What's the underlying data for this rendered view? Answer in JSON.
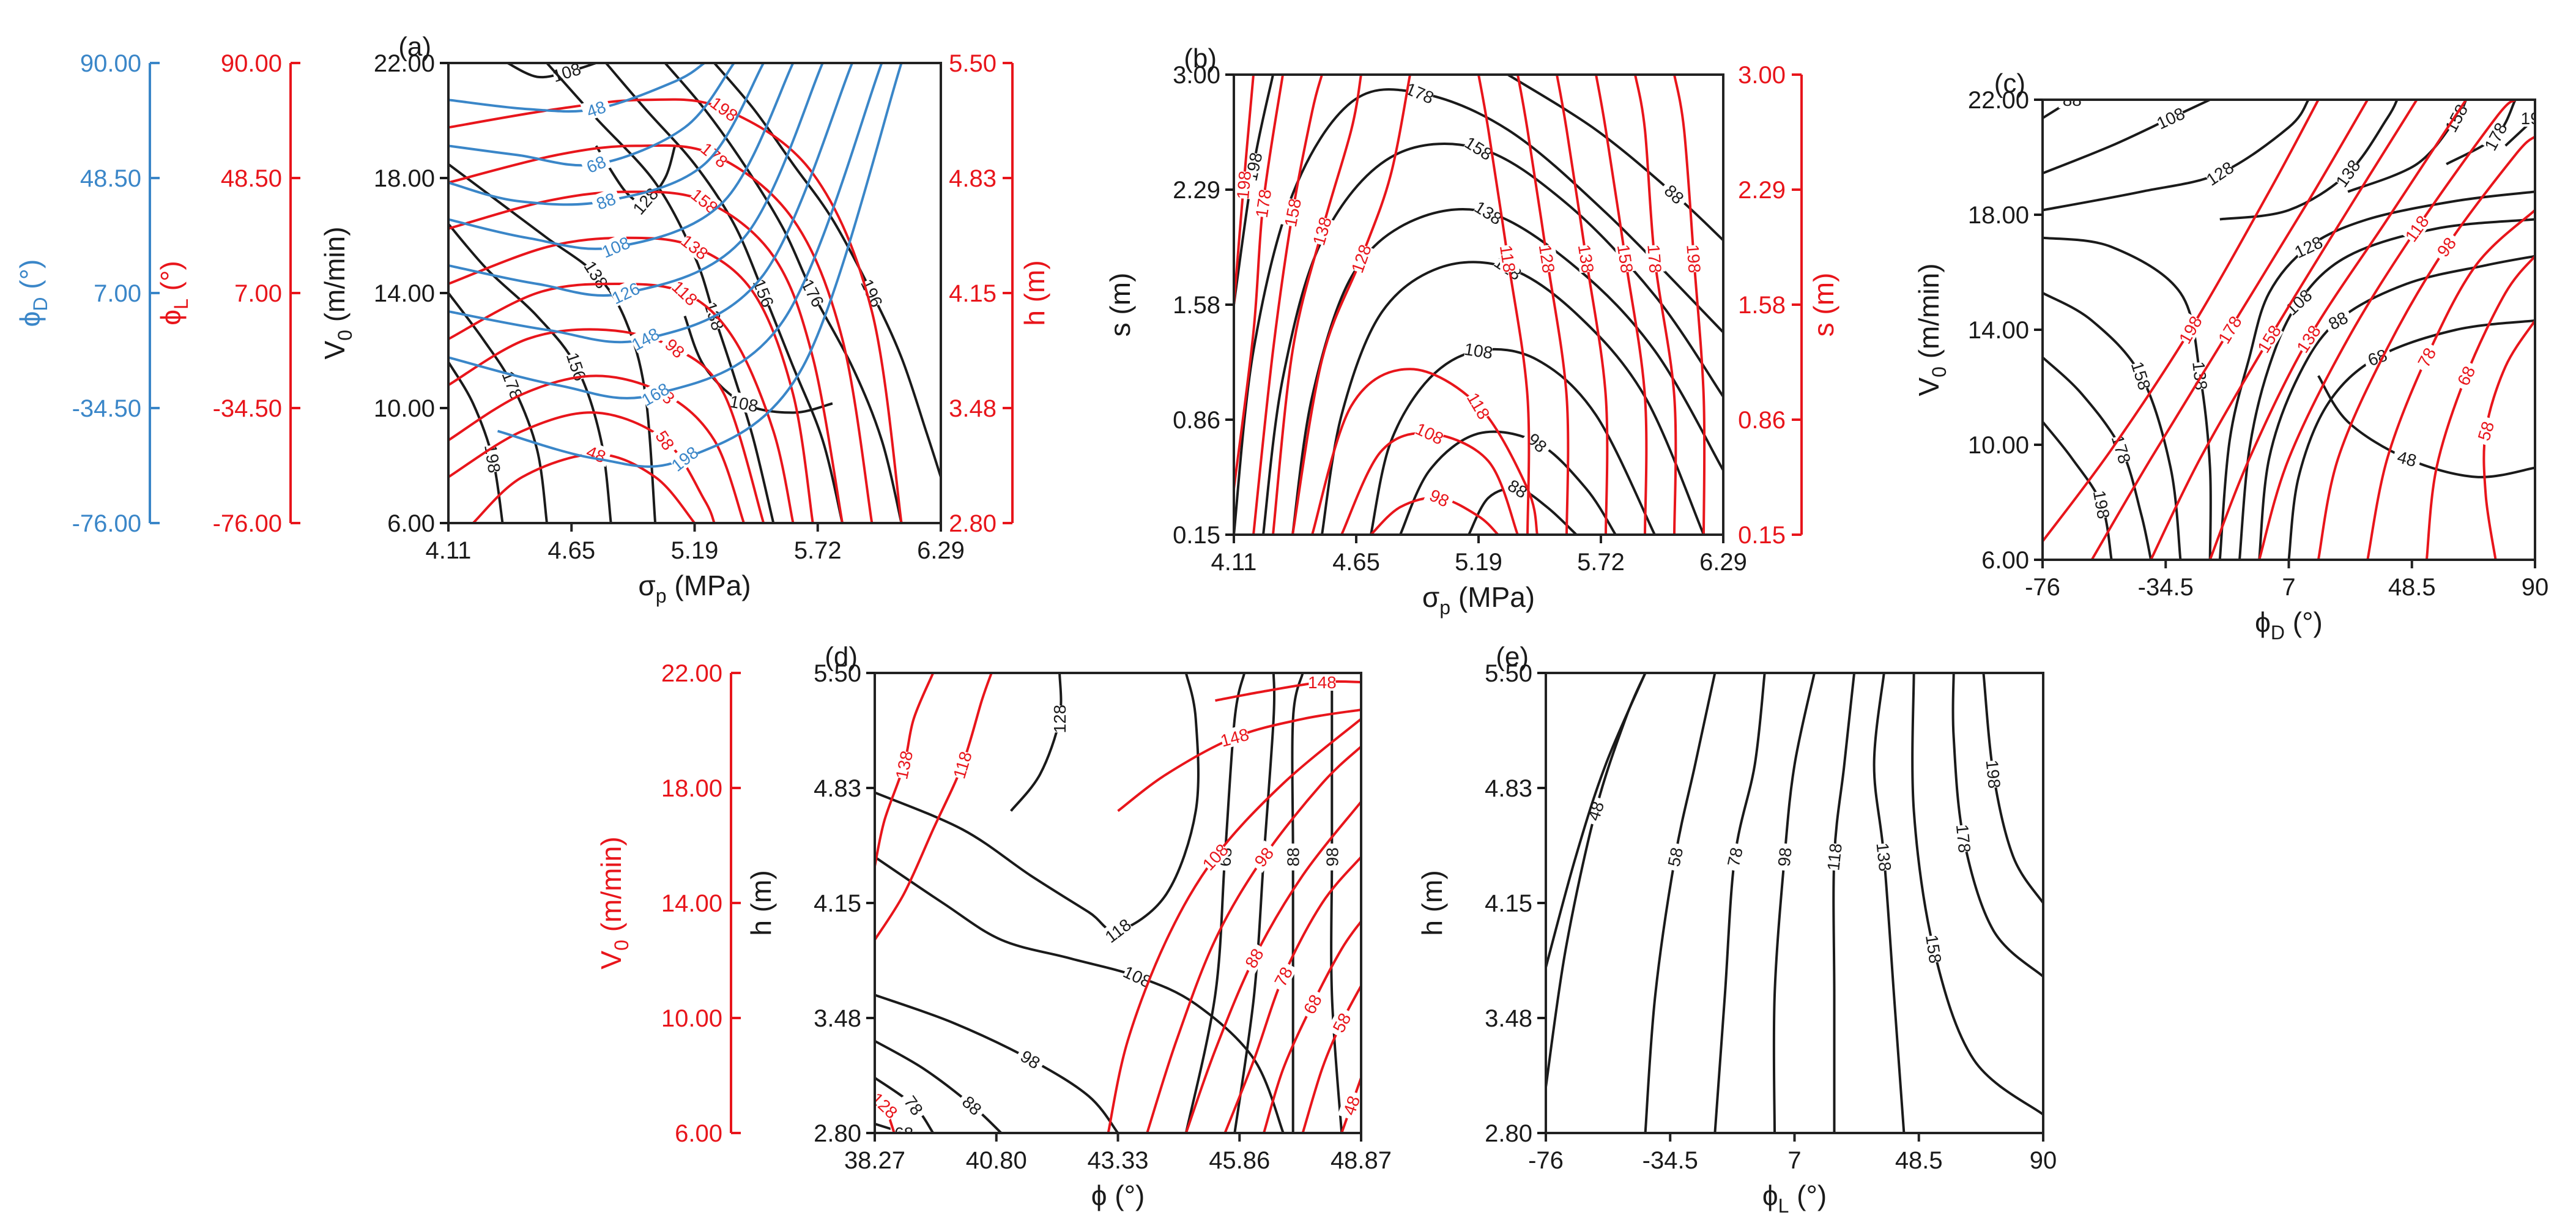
{
  "colors": {
    "black": "#1a1a1a",
    "red": "#e8151b",
    "blue": "#3a86c8",
    "frame": "#222222"
  },
  "chart_data": [
    {
      "id": "a",
      "panel_label": "(a)",
      "type": "contour",
      "xlabel": "σp (MPa)",
      "xlabel_sym": "σ",
      "xlabel_sub": "p",
      "xlabel_rest": " (MPa)",
      "xlim": [
        4.11,
        6.29
      ],
      "xticks": [
        "4.11",
        "4.65",
        "5.19",
        "5.72",
        "6.29"
      ],
      "yaxes": [
        {
          "side": "left",
          "color": "black",
          "label": "V0 (m/min)",
          "label_sym": "V",
          "label_sub": "0",
          "label_rest": " (m/min)",
          "ticks": [
            "22.00",
            "18.00",
            "14.00",
            "10.00",
            "6.00"
          ],
          "range": [
            6,
            22
          ]
        },
        {
          "side": "right",
          "color": "red",
          "label": "h (m)",
          "label_sym": "h",
          "label_sub": "",
          "label_rest": " (m)",
          "ticks": [
            "5.50",
            "4.83",
            "4.15",
            "3.48",
            "2.80"
          ],
          "range": [
            2.8,
            5.5
          ]
        },
        {
          "side": "outer-left",
          "color": "red",
          "label": "ϕL (°)",
          "label_sym": "ϕ",
          "label_sub": "L",
          "label_rest": " (°)",
          "ticks": [
            "90.00",
            "48.50",
            "7.00",
            "-34.50",
            "-76.00"
          ],
          "range": [
            -76,
            90
          ]
        },
        {
          "side": "outer-left-2",
          "color": "blue",
          "label": "ϕD (°)",
          "label_sym": "ϕ",
          "label_sub": "D",
          "label_rest": " (°)",
          "ticks": [
            "90.00",
            "48.50",
            "7.00",
            "-34.50",
            "-76.00"
          ],
          "range": [
            -76,
            90
          ]
        }
      ],
      "series": [
        {
          "name": "V0 vs σp",
          "color": "black",
          "levels": [
            "108",
            "118",
            "128",
            "138",
            "156",
            "158",
            "176",
            "178",
            "196",
            "198"
          ]
        },
        {
          "name": "h vs σp",
          "color": "red",
          "levels": [
            "48",
            "58",
            "78",
            "98",
            "118",
            "138",
            "158",
            "178",
            "198"
          ]
        },
        {
          "name": "ϕD vs σp",
          "color": "blue",
          "levels": [
            "48",
            "68",
            "88",
            "108",
            "126",
            "148",
            "168",
            "198"
          ]
        }
      ]
    },
    {
      "id": "b",
      "panel_label": "(b)",
      "type": "contour",
      "xlabel": "σp (MPa)",
      "xlabel_sym": "σ",
      "xlabel_sub": "p",
      "xlabel_rest": " (MPa)",
      "xlim": [
        4.11,
        6.29
      ],
      "xticks": [
        "4.11",
        "4.65",
        "5.19",
        "5.72",
        "6.29"
      ],
      "yaxes": [
        {
          "side": "left",
          "color": "black",
          "label": "s (m)",
          "label_sym": "s",
          "label_sub": "",
          "label_rest": " (m)",
          "ticks": [
            "3.00",
            "2.29",
            "1.58",
            "0.86",
            "0.15"
          ],
          "range": [
            0.15,
            3.0
          ]
        },
        {
          "side": "right",
          "color": "red",
          "label": "s (m)",
          "label_sym": "s",
          "label_sub": "",
          "label_rest": " (m)",
          "ticks": [
            "3.00",
            "2.29",
            "1.58",
            "0.86",
            "0.15"
          ],
          "range": [
            0.15,
            3.0
          ]
        }
      ],
      "series": [
        {
          "name": "black",
          "color": "black",
          "levels": [
            "88",
            "98",
            "108",
            "128",
            "138",
            "158",
            "178",
            "198"
          ]
        },
        {
          "name": "red",
          "color": "red",
          "levels": [
            "98",
            "108",
            "118",
            "128",
            "138",
            "158",
            "178",
            "198",
            "118",
            "128",
            "138",
            "158",
            "178",
            "198"
          ]
        }
      ]
    },
    {
      "id": "c",
      "panel_label": "(c)",
      "type": "contour",
      "xlabel": "ϕD (°)",
      "xlabel_sym": "ϕ",
      "xlabel_sub": "D",
      "xlabel_rest": " (°)",
      "xlim": [
        -76,
        90
      ],
      "xticks": [
        "-76",
        "-34.5",
        "7",
        "48.5",
        "90"
      ],
      "yaxes": [
        {
          "side": "left",
          "color": "black",
          "label": "V0 (m/min)",
          "label_sym": "V",
          "label_sub": "0",
          "label_rest": " (m/min)",
          "ticks": [
            "22.00",
            "18.00",
            "14.00",
            "10.00",
            "6.00"
          ],
          "range": [
            6,
            22
          ]
        }
      ],
      "series": [
        {
          "name": "black",
          "color": "black",
          "levels": [
            "48",
            "68",
            "88",
            "108",
            "128",
            "138",
            "158",
            "178",
            "198",
            "88",
            "108",
            "128",
            "138",
            "158",
            "178",
            "198"
          ]
        },
        {
          "name": "red",
          "color": "red",
          "levels": [
            "58",
            "68",
            "78",
            "98",
            "118",
            "138",
            "158",
            "178",
            "198"
          ]
        }
      ]
    },
    {
      "id": "d",
      "panel_label": "(d)",
      "type": "contour",
      "xlabel": "ϕ (°)",
      "xlabel_sym": "ϕ",
      "xlabel_sub": "",
      "xlabel_rest": " (°)",
      "xlim": [
        38.27,
        48.87
      ],
      "xticks": [
        "38.27",
        "40.80",
        "43.33",
        "45.86",
        "48.87"
      ],
      "yaxes": [
        {
          "side": "left",
          "color": "black",
          "label": "h (m)",
          "label_sym": "h",
          "label_sub": "",
          "label_rest": " (m)",
          "ticks": [
            "5.50",
            "4.83",
            "4.15",
            "3.48",
            "2.80"
          ],
          "range": [
            2.8,
            5.5
          ]
        },
        {
          "side": "outer-left",
          "color": "red",
          "label": "V0 (m/min)",
          "label_sym": "V",
          "label_sub": "0",
          "label_rest": " (m/min)",
          "ticks": [
            "22.00",
            "18.00",
            "14.00",
            "10.00",
            "6.00"
          ],
          "range": [
            6,
            22
          ]
        }
      ],
      "series": [
        {
          "name": "black",
          "color": "black",
          "levels": [
            "68",
            "78",
            "88",
            "98",
            "108",
            "118",
            "128"
          ]
        },
        {
          "name": "red",
          "color": "red",
          "levels": [
            "48",
            "58",
            "68",
            "78",
            "88",
            "98",
            "108",
            "118",
            "128",
            "138",
            "148"
          ]
        }
      ]
    },
    {
      "id": "e",
      "panel_label": "(e)",
      "type": "contour",
      "xlabel": "ϕL (°)",
      "xlabel_sym": "ϕ",
      "xlabel_sub": "L",
      "xlabel_rest": " (°)",
      "xlim": [
        -76,
        90
      ],
      "xticks": [
        "-76",
        "-34.5",
        "7",
        "48.5",
        "90"
      ],
      "yaxes": [
        {
          "side": "left",
          "color": "black",
          "label": "h (m)",
          "label_sym": "h",
          "label_sub": "",
          "label_rest": " (m)",
          "ticks": [
            "5.50",
            "4.83",
            "4.15",
            "3.48",
            "2.80"
          ],
          "range": [
            2.8,
            5.5
          ]
        }
      ],
      "series": [
        {
          "name": "black",
          "color": "black",
          "levels": [
            "48",
            "58",
            "78",
            "98",
            "118",
            "138",
            "158",
            "178",
            "198"
          ]
        }
      ]
    }
  ]
}
